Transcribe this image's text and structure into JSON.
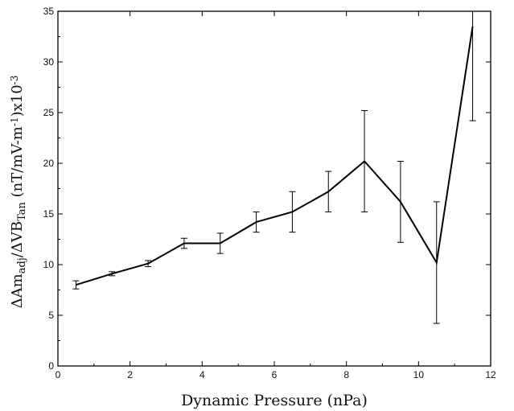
{
  "chart_data": {
    "type": "line",
    "title": "",
    "xlabel": "Dynamic Pressure (nPa)",
    "ylabel": {
      "parts": [
        {
          "text": "ΔAm",
          "sub": false
        },
        {
          "text": "adj",
          "sub": true
        },
        {
          "text": "/ΔVB",
          "sub": false
        },
        {
          "text": "Tan",
          "sub": true
        },
        {
          "text": " (nT/mV-m",
          "sub": false
        },
        {
          "text": "-1",
          "sup": true
        },
        {
          "text": ")x10",
          "sub": false
        },
        {
          "text": "-3",
          "sup": true
        }
      ]
    },
    "xlim": [
      0,
      12
    ],
    "ylim": [
      0,
      35
    ],
    "xticks": [
      0,
      2,
      4,
      6,
      8,
      10,
      12
    ],
    "yticks": [
      0,
      5,
      10,
      15,
      20,
      25,
      30,
      35
    ],
    "grid": false,
    "legend": "none",
    "line_color": "#000000",
    "series": [
      {
        "x": [
          0.5,
          1.5,
          2.5,
          3.5,
          4.5,
          5.5,
          6.5,
          7.5,
          8.5,
          9.5,
          10.5,
          11.5
        ],
        "y": [
          8.0,
          9.1,
          10.1,
          12.1,
          12.1,
          14.2,
          15.2,
          17.2,
          20.2,
          16.2,
          10.2,
          33.5
        ],
        "err_low": [
          7.6,
          8.9,
          9.8,
          11.6,
          11.1,
          13.2,
          13.2,
          15.2,
          15.2,
          12.2,
          4.2,
          24.2
        ],
        "err_high": [
          8.4,
          9.3,
          10.4,
          12.6,
          13.1,
          15.2,
          17.2,
          19.2,
          25.2,
          20.2,
          16.2,
          35.0
        ]
      }
    ]
  }
}
